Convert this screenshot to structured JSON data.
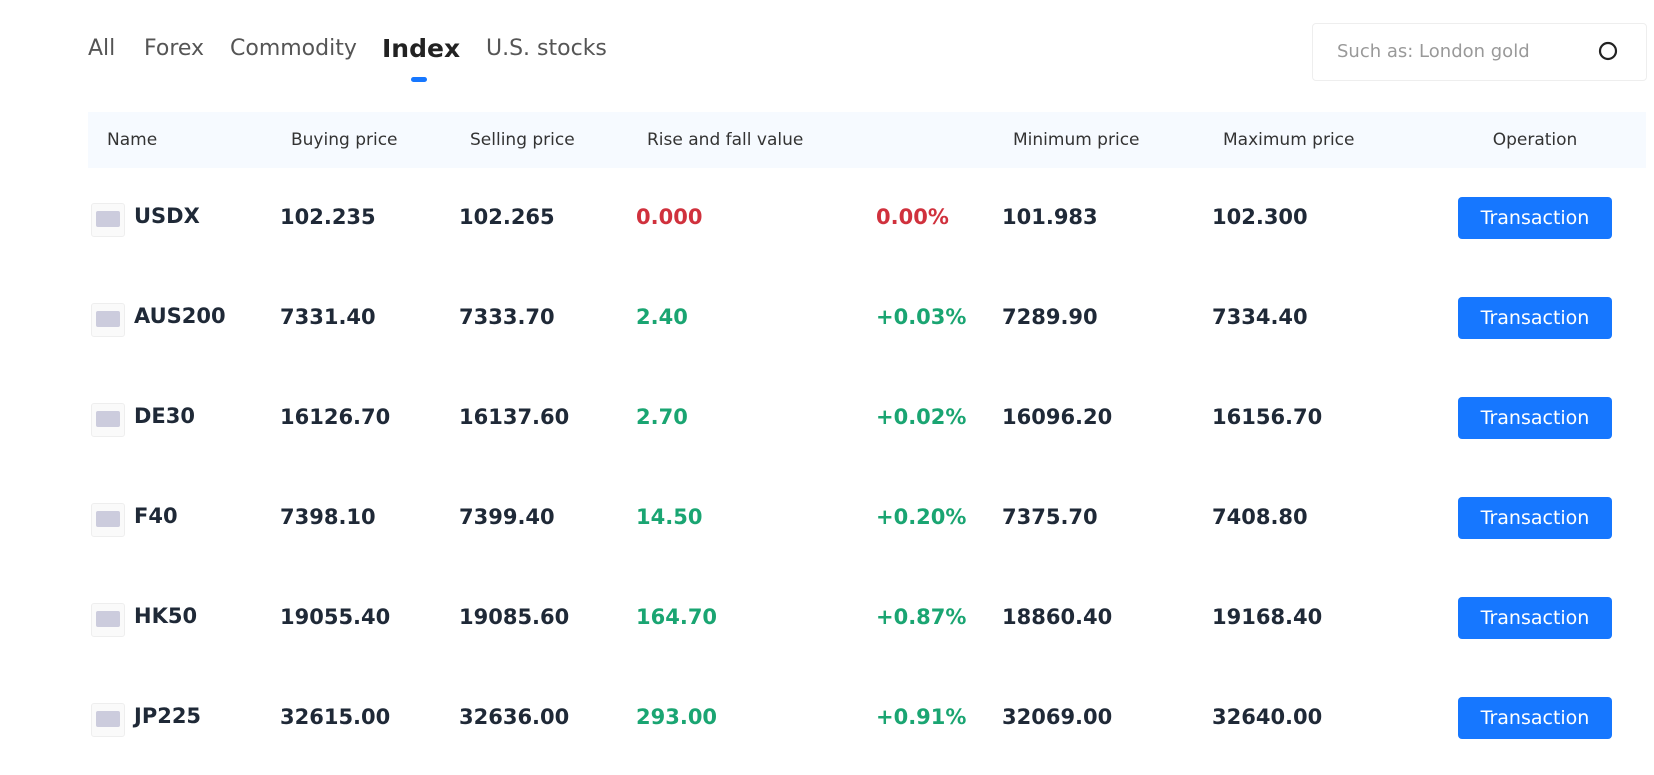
{
  "tabs": [
    "All",
    "Forex",
    "Commodity",
    "Index",
    "U.S. stocks"
  ],
  "active_tab": 3,
  "search": {
    "placeholder": "Such as: London gold"
  },
  "table": {
    "headers": [
      "Name",
      "Buying price",
      "Selling price",
      "Rise and fall value",
      "Minimum price",
      "Maximum price",
      "Operation"
    ],
    "action": "Transaction",
    "rows": [
      {
        "name": "USDX",
        "buy": "102.235",
        "sell": "102.265",
        "change": "0.000",
        "pct": "0.00%",
        "min": "101.983",
        "max": "102.300",
        "color": "#d0313d"
      },
      {
        "name": "AUS200",
        "buy": "7331.40",
        "sell": "7333.70",
        "change": "2.40",
        "pct": "+0.03%",
        "min": "7289.90",
        "max": "7334.40",
        "color": "#1aa572"
      },
      {
        "name": "DE30",
        "buy": "16126.70",
        "sell": "16137.60",
        "change": "2.70",
        "pct": "+0.02%",
        "min": "16096.20",
        "max": "16156.70",
        "color": "#1aa572"
      },
      {
        "name": "F40",
        "buy": "7398.10",
        "sell": "7399.40",
        "change": "14.50",
        "pct": "+0.20%",
        "min": "7375.70",
        "max": "7408.80",
        "color": "#1aa572"
      },
      {
        "name": "HK50",
        "buy": "19055.40",
        "sell": "19085.60",
        "change": "164.70",
        "pct": "+0.87%",
        "min": "18860.40",
        "max": "19168.40",
        "color": "#1aa572"
      },
      {
        "name": "JP225",
        "buy": "32615.00",
        "sell": "32636.00",
        "change": "293.00",
        "pct": "+0.91%",
        "min": "32069.00",
        "max": "32640.00",
        "color": "#1aa572"
      }
    ]
  }
}
